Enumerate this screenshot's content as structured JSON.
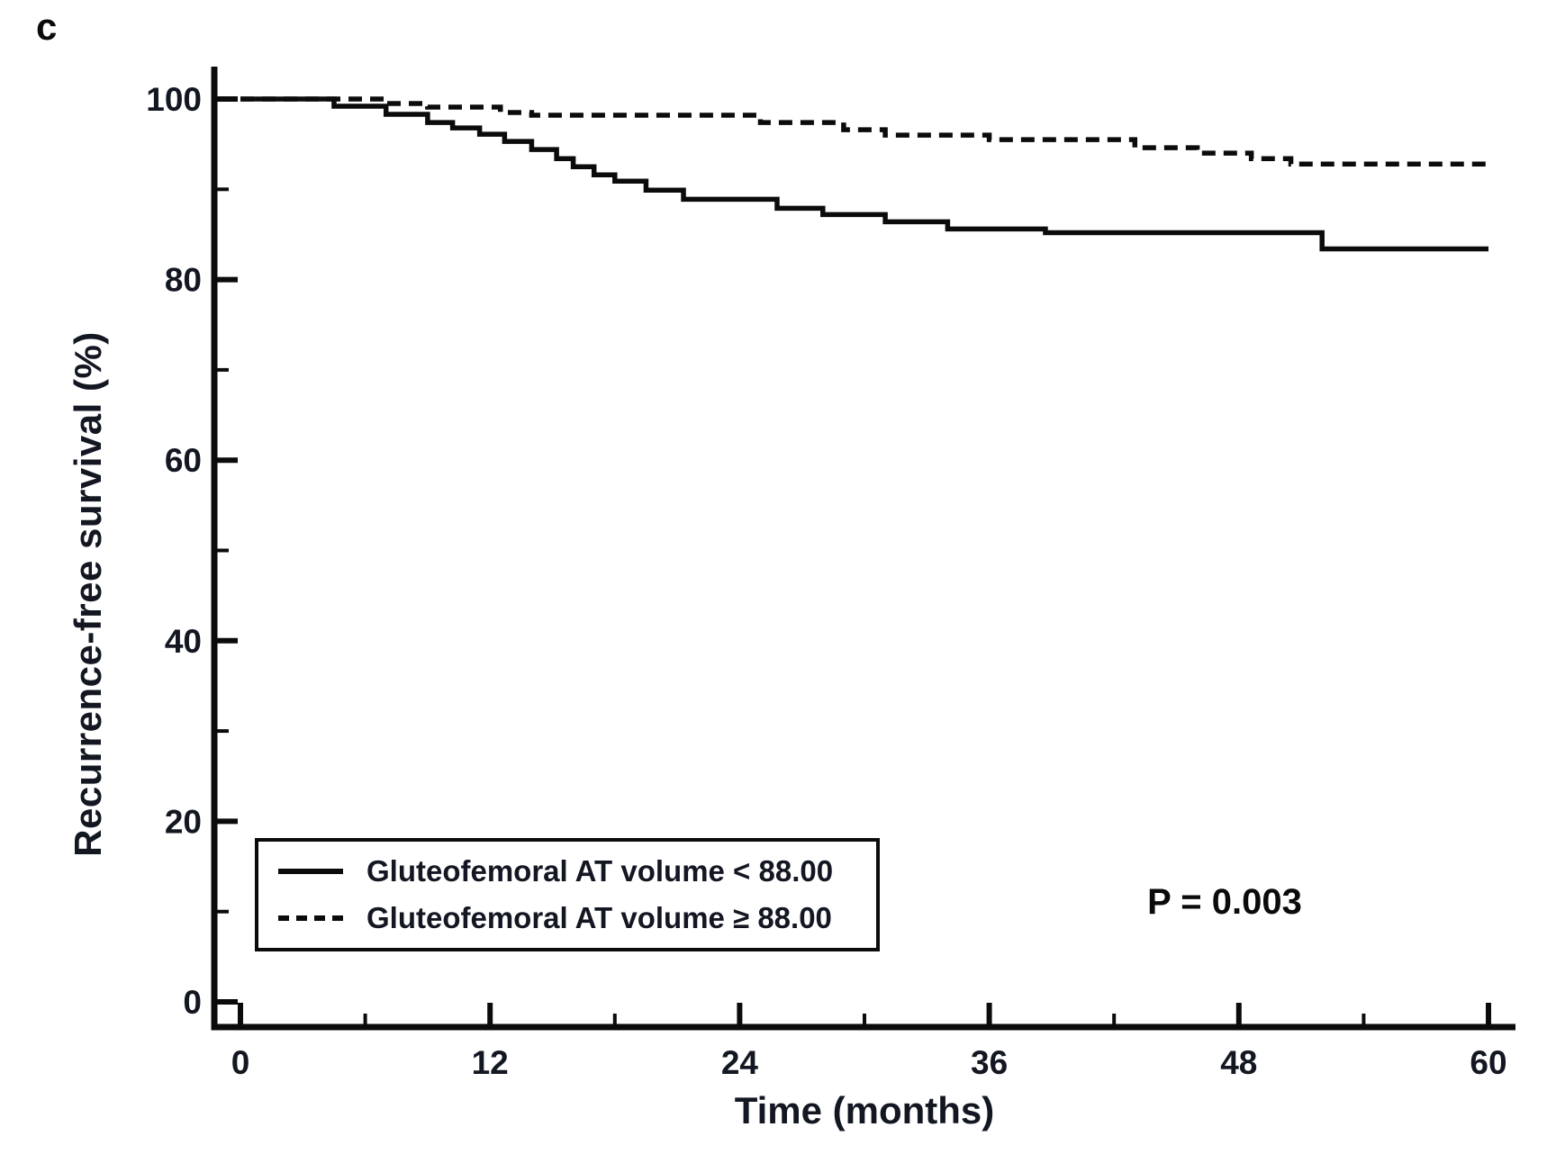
{
  "panel_label": "c",
  "p_value_label": "P = 0.003",
  "legend": {
    "items": [
      {
        "label": "Gluteofemoral AT volume < 88.00",
        "style": "solid"
      },
      {
        "label": "Gluteofemoral AT volume ≥ 88.00",
        "style": "dashed"
      }
    ]
  },
  "chart_data": {
    "type": "line",
    "subtype": "kaplan-meier-step",
    "title": "",
    "xlabel": "Time (months)",
    "ylabel": "Recurrence-free survival (%)",
    "xlim": [
      0,
      60
    ],
    "ylim": [
      0,
      100
    ],
    "x_major_ticks": [
      0,
      12,
      24,
      36,
      48,
      60
    ],
    "x_minor_ticks": [
      6,
      18,
      30,
      42,
      54
    ],
    "y_major_ticks": [
      0,
      20,
      40,
      60,
      80,
      100
    ],
    "y_minor_ticks": [
      10,
      30,
      50,
      70,
      90
    ],
    "grid": false,
    "legend_position": "lower-left-box",
    "annotation": "P = 0.003",
    "colors": {
      "line": "#0b0b0b",
      "text": "#131722",
      "background": "#ffffff"
    },
    "series": [
      {
        "name": "Gluteofemoral AT volume < 88.00",
        "style": "solid",
        "points": [
          [
            0,
            100
          ],
          [
            4.5,
            99.2
          ],
          [
            7,
            98.3
          ],
          [
            9,
            97.4
          ],
          [
            10.2,
            96.8
          ],
          [
            11.5,
            96.1
          ],
          [
            12.7,
            95.3
          ],
          [
            14,
            94.4
          ],
          [
            15.2,
            93.4
          ],
          [
            16,
            92.5
          ],
          [
            17,
            91.6
          ],
          [
            18,
            90.9
          ],
          [
            19.5,
            89.9
          ],
          [
            21.3,
            88.9
          ],
          [
            25.8,
            87.9
          ],
          [
            28,
            87.2
          ],
          [
            31,
            86.4
          ],
          [
            34,
            85.6
          ],
          [
            38.7,
            85.2
          ],
          [
            52,
            83.4
          ],
          [
            60,
            83.4
          ]
        ]
      },
      {
        "name": "Gluteofemoral AT volume ≥ 88.00",
        "style": "dashed",
        "points": [
          [
            0,
            100
          ],
          [
            7,
            99.5
          ],
          [
            9,
            99.1
          ],
          [
            12.5,
            98.5
          ],
          [
            14,
            98.2
          ],
          [
            25,
            97.4
          ],
          [
            29,
            96.6
          ],
          [
            31,
            96.0
          ],
          [
            36,
            95.5
          ],
          [
            43,
            94.6
          ],
          [
            46,
            94.0
          ],
          [
            48.6,
            93.4
          ],
          [
            50.5,
            92.8
          ],
          [
            60,
            92.8
          ]
        ]
      }
    ]
  }
}
